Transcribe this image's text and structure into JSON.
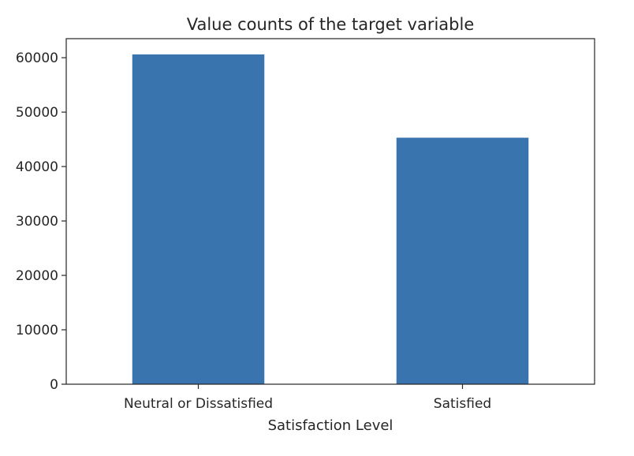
{
  "chart_data": {
    "type": "bar",
    "title": "Value counts of the target variable",
    "xlabel": "Satisfaction Level",
    "ylabel": "",
    "categories": [
      "Neutral or Dissatisfied",
      "Satisfied"
    ],
    "values": [
      60600,
      45300
    ],
    "ylim": [
      0,
      63500
    ],
    "yticks": [
      0,
      10000,
      20000,
      30000,
      40000,
      50000,
      60000
    ],
    "ytick_labels": [
      "0",
      "10000",
      "20000",
      "30000",
      "40000",
      "50000",
      "60000"
    ],
    "grid": false,
    "legend": "none",
    "colors": {
      "bar": "#3a74ae",
      "axis": "#262626",
      "background": "#ffffff"
    }
  }
}
